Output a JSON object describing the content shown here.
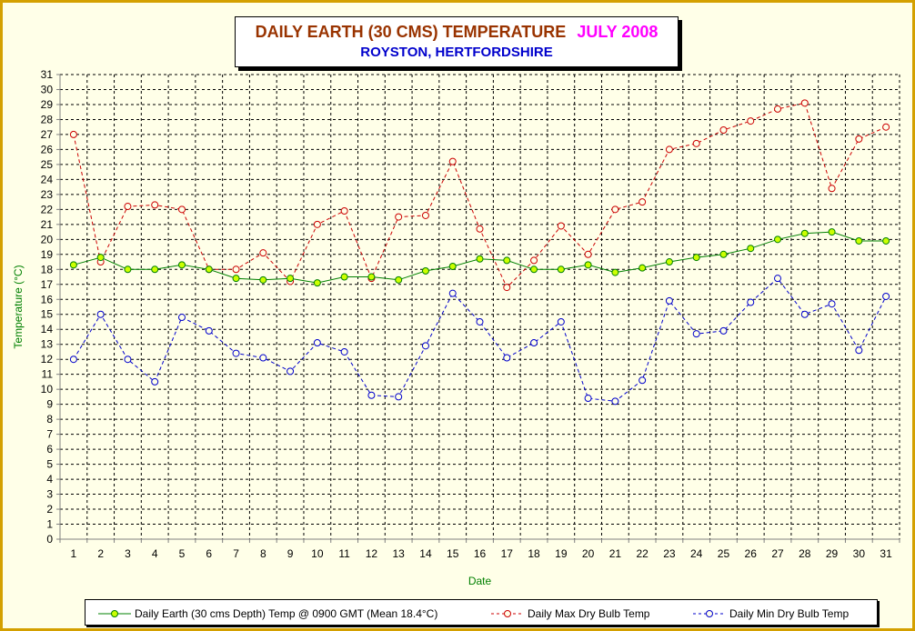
{
  "title": {
    "main": "DAILY EARTH (30 CMS) TEMPERATURE",
    "date": "JULY 2008",
    "location": "ROYSTON, HERTFORDSHIRE"
  },
  "chart_data": {
    "type": "line",
    "xlabel": "Date",
    "ylabel": "Temperature (°C)",
    "ylim": [
      0,
      31
    ],
    "grid": true,
    "legend_position": "bottom",
    "categories": [
      1,
      2,
      3,
      4,
      5,
      6,
      7,
      8,
      9,
      10,
      11,
      12,
      13,
      14,
      15,
      16,
      17,
      18,
      19,
      20,
      21,
      22,
      23,
      24,
      25,
      26,
      27,
      28,
      29,
      30,
      31
    ],
    "series": [
      {
        "name": "Daily Earth (30 cms Depth) Temp @ 0900 GMT (Mean 18.4°C)",
        "color": "#008000",
        "marker_fill": "#ccff00",
        "style": "solid",
        "values": [
          18.3,
          18.8,
          18.0,
          18.0,
          18.3,
          18.0,
          17.4,
          17.3,
          17.4,
          17.1,
          17.5,
          17.5,
          17.3,
          17.9,
          18.2,
          18.7,
          18.6,
          18.0,
          18.0,
          18.3,
          17.8,
          18.1,
          18.5,
          18.8,
          19.0,
          19.4,
          20.0,
          20.4,
          20.5,
          19.9,
          19.9
        ]
      },
      {
        "name": "Daily Max Dry Bulb Temp",
        "color": "#cc0000",
        "marker_fill": "#ffffe8",
        "style": "dashed",
        "values": [
          27.0,
          18.5,
          22.2,
          22.3,
          22.0,
          18.0,
          18.0,
          19.1,
          17.2,
          21.0,
          21.9,
          17.4,
          21.5,
          21.6,
          25.2,
          20.7,
          16.8,
          18.6,
          20.9,
          19.0,
          22.0,
          22.5,
          26.0,
          26.4,
          27.3,
          27.9,
          28.7,
          29.1,
          23.4,
          26.7,
          27.5
        ]
      },
      {
        "name": "Daily Min Dry Bulb Temp",
        "color": "#0000cc",
        "marker_fill": "#ffffe8",
        "style": "dashed",
        "values": [
          12.0,
          15.0,
          12.0,
          10.5,
          14.8,
          13.9,
          12.4,
          12.1,
          11.2,
          13.1,
          12.5,
          9.6,
          9.5,
          12.9,
          16.4,
          14.5,
          12.1,
          13.1,
          14.5,
          9.4,
          9.2,
          10.6,
          15.9,
          13.7,
          13.9,
          15.8,
          17.4,
          15.0,
          15.7,
          12.6,
          16.2
        ]
      }
    ]
  }
}
